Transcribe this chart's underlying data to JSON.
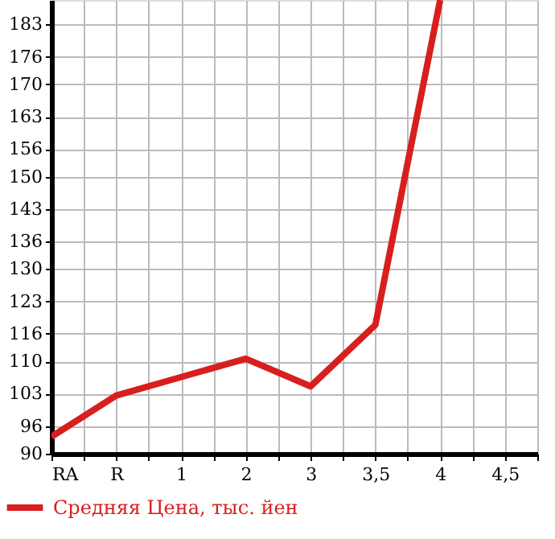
{
  "chart_data": {
    "type": "line",
    "categories": [
      "RA",
      "R",
      "1",
      "2",
      "3",
      "3,5",
      "4",
      "4,5"
    ],
    "series": [
      {
        "name": "Средняя Цена, тыс. йен",
        "color": "#d81e1e",
        "values": [
          93.7,
          102.6,
          106.6,
          110.6,
          104.6,
          117.9,
          188.3,
          null
        ]
      }
    ],
    "ylim": [
      90,
      188.3
    ],
    "yticks": [
      90,
      96,
      103,
      110,
      116,
      123,
      130,
      136,
      143,
      150,
      156,
      163,
      170,
      176,
      183
    ],
    "grid": true,
    "legend": "bottom left",
    "marker": "none",
    "line_style": "solid"
  }
}
